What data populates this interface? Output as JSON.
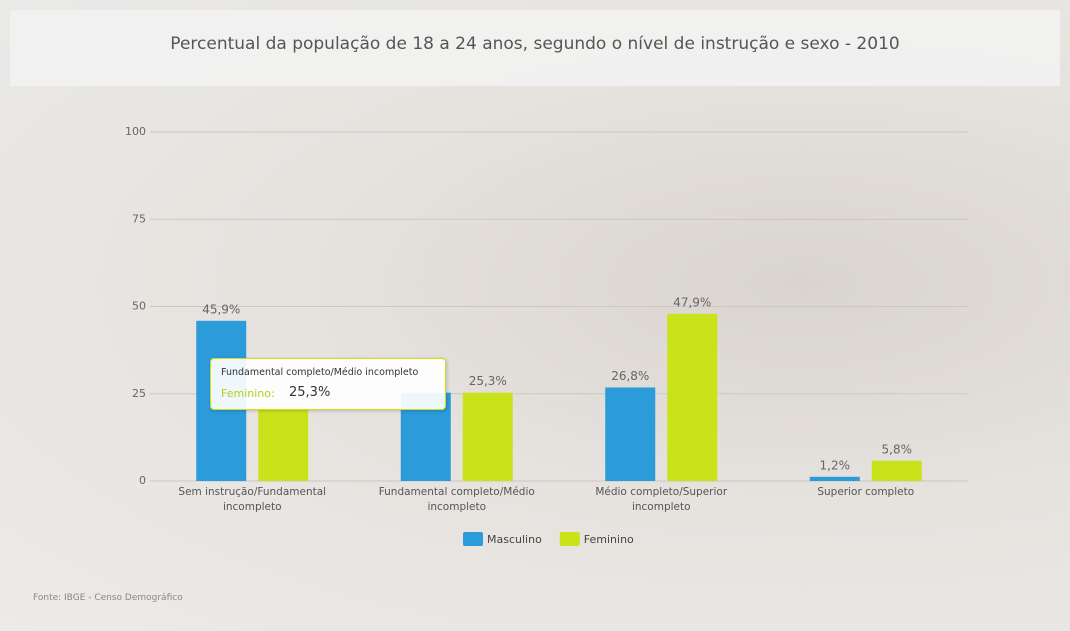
{
  "chart_data": {
    "type": "bar",
    "title": "Percentual da população de 18 a 24 anos, segundo o nível de instrução e sexo - 2010",
    "categories": [
      "Sem instrução/Fundamental incompleto",
      "Fundamental completo/Médio incompleto",
      "Médio completo/Superior incompleto",
      "Superior completo"
    ],
    "series": [
      {
        "name": "Masculino",
        "color": "#2b9bd9",
        "values": [
          45.9,
          25.3,
          26.8,
          1.2
        ],
        "value_labels": [
          "45,9%",
          null,
          "26,8%",
          "1,2%"
        ]
      },
      {
        "name": "Feminino",
        "color": "#c9e31b",
        "values": [
          20.7,
          25.3,
          47.9,
          5.8
        ],
        "value_labels": [
          null,
          "25,3%",
          "47,9%",
          "5,8%"
        ]
      }
    ],
    "ylim": [
      0,
      100
    ],
    "yticks": [
      0,
      25,
      50,
      75,
      100
    ],
    "grid": true,
    "legend": "bottom",
    "tooltip": {
      "title": "Fundamental completo/Médio incompleto",
      "label": "Feminino:",
      "value": "25,3%"
    },
    "source": "Fonte: IBGE - Censo Demográfico"
  }
}
